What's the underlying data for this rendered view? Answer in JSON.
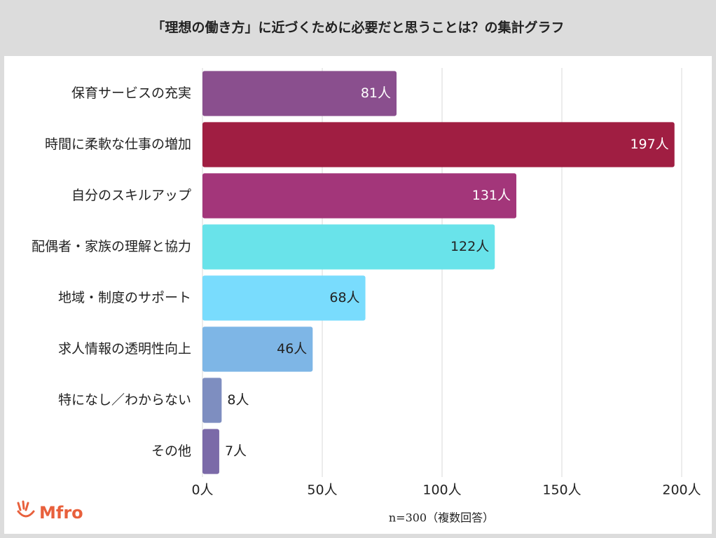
{
  "chart_data": {
    "type": "bar",
    "orientation": "horizontal",
    "title": "「理想の働き方」に近づくために必要だと思うことは？の集計グラフ",
    "categories": [
      "保育サービスの充実",
      "時間に柔軟な仕事の増加",
      "自分のスキルアップ",
      "配偶者・家族の理解と協力",
      "地域・制度のサポート",
      "求人情報の透明性向上",
      "特になし／わからない",
      "その他"
    ],
    "values": [
      81,
      197,
      131,
      122,
      68,
      46,
      8,
      7
    ],
    "value_labels": [
      "81人",
      "197人",
      "131人",
      "122人",
      "68人",
      "46人",
      "8人",
      "7人"
    ],
    "colors": [
      "#8a4f8e",
      "#a01e42",
      "#a3367a",
      "#69e3ea",
      "#79dcfd",
      "#7eb6e6",
      "#7e8ec0",
      "#7b6aa8"
    ],
    "xlim": [
      0,
      200
    ],
    "xticks": [
      {
        "value": 0,
        "label": "0人"
      },
      {
        "value": 50,
        "label": "50人"
      },
      {
        "value": 100,
        "label": "100人"
      },
      {
        "value": 150,
        "label": "150人"
      },
      {
        "value": 200,
        "label": "200人"
      }
    ],
    "grid": true,
    "note": "n=300（複数回答）"
  },
  "logo": "Mfro"
}
